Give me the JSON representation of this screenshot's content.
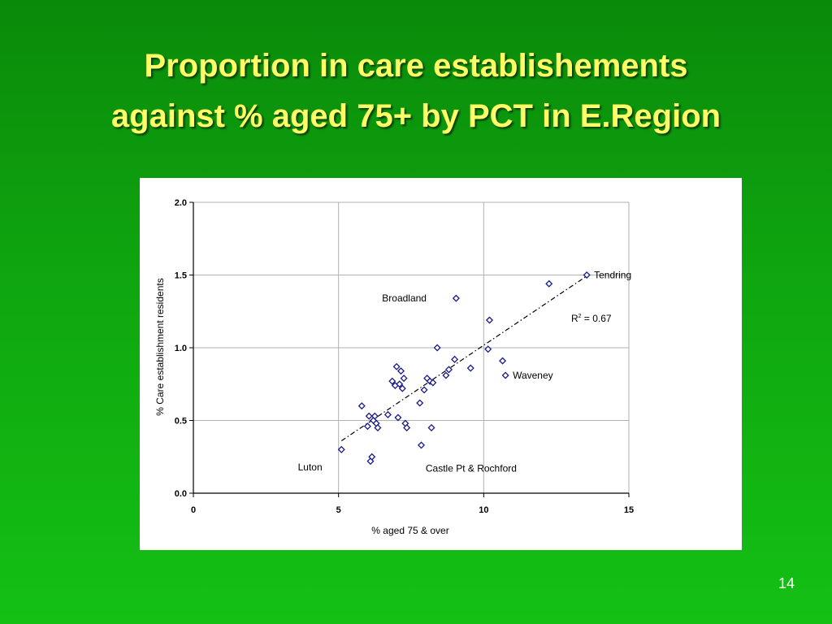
{
  "slide": {
    "title_line1": "Proportion in care establishements",
    "title_line2": "against % aged 75+  by PCT in E.Region",
    "page_number": "14"
  },
  "chart_data": {
    "type": "scatter",
    "xlabel": "% aged 75 & over",
    "ylabel": "% Care establishment residents",
    "xlim": [
      0,
      15
    ],
    "ylim": [
      0,
      2.0
    ],
    "x_ticks": [
      "0",
      "5",
      "10",
      "15"
    ],
    "y_ticks": [
      "0.0",
      "0.5",
      "1.0",
      "1.5",
      "2.0"
    ],
    "grid": true,
    "trendline": {
      "style": "dash-dot",
      "x": [
        5.1,
        13.6
      ],
      "y": [
        0.36,
        1.5
      ]
    },
    "r_squared_label": "R",
    "r_squared_sup": "2",
    "r_squared_value": " = 0.67",
    "point_color": "#1a1a8a",
    "points": [
      {
        "x": 5.1,
        "y": 0.3
      },
      {
        "x": 5.8,
        "y": 0.6
      },
      {
        "x": 6.0,
        "y": 0.46
      },
      {
        "x": 6.05,
        "y": 0.53
      },
      {
        "x": 6.1,
        "y": 0.22
      },
      {
        "x": 6.15,
        "y": 0.25
      },
      {
        "x": 6.2,
        "y": 0.5
      },
      {
        "x": 6.25,
        "y": 0.53
      },
      {
        "x": 6.3,
        "y": 0.48
      },
      {
        "x": 6.35,
        "y": 0.45
      },
      {
        "x": 6.7,
        "y": 0.54
      },
      {
        "x": 6.85,
        "y": 0.77
      },
      {
        "x": 6.95,
        "y": 0.74
      },
      {
        "x": 7.0,
        "y": 0.87
      },
      {
        "x": 7.05,
        "y": 0.52
      },
      {
        "x": 7.1,
        "y": 0.75
      },
      {
        "x": 7.15,
        "y": 0.84
      },
      {
        "x": 7.2,
        "y": 0.72
      },
      {
        "x": 7.25,
        "y": 0.79
      },
      {
        "x": 7.3,
        "y": 0.48
      },
      {
        "x": 7.35,
        "y": 0.45
      },
      {
        "x": 7.8,
        "y": 0.62
      },
      {
        "x": 7.85,
        "y": 0.33
      },
      {
        "x": 7.95,
        "y": 0.71
      },
      {
        "x": 8.05,
        "y": 0.79
      },
      {
        "x": 8.15,
        "y": 0.77
      },
      {
        "x": 8.2,
        "y": 0.45
      },
      {
        "x": 8.25,
        "y": 0.76
      },
      {
        "x": 8.4,
        "y": 1.0
      },
      {
        "x": 8.7,
        "y": 0.81
      },
      {
        "x": 8.8,
        "y": 0.85
      },
      {
        "x": 9.0,
        "y": 0.92
      },
      {
        "x": 9.05,
        "y": 1.34
      },
      {
        "x": 9.55,
        "y": 0.86
      },
      {
        "x": 10.15,
        "y": 0.99
      },
      {
        "x": 10.2,
        "y": 1.19
      },
      {
        "x": 10.65,
        "y": 0.91
      },
      {
        "x": 10.75,
        "y": 0.81
      },
      {
        "x": 12.25,
        "y": 1.44
      },
      {
        "x": 13.55,
        "y": 1.5
      }
    ],
    "annotations": [
      {
        "text": "Tendring",
        "x": 13.8,
        "y": 1.5
      },
      {
        "text": "Broadland",
        "x": 6.5,
        "y": 1.34
      },
      {
        "text": "Waveney",
        "x": 11.0,
        "y": 0.81
      },
      {
        "text": "Luton",
        "x": 3.6,
        "y": 0.18
      },
      {
        "text": "Castle Pt & Rochford",
        "x": 8.0,
        "y": 0.17
      }
    ]
  }
}
